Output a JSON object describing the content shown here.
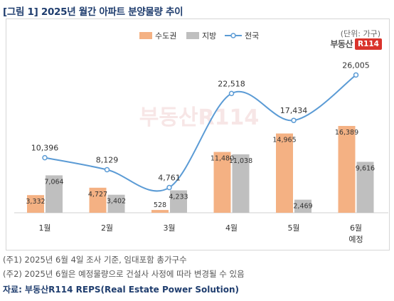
{
  "title": "[그림 1] 2025년 월간 아파트 분양물량 추이",
  "unit": "(단위: 가구)",
  "logo": {
    "text": "부동산",
    "badge": "R114"
  },
  "watermark": "부동산R114",
  "notes": [
    "(주1) 2025년 6월 4일 조사 기준, 임대포함 총가구수",
    "(주2) 2025년 6월은 예정물량으로 건설사 사정에 따라 변경될 수 있음"
  ],
  "source": "자료: 부동산R114 REPS(Real Estate Power Solution)",
  "colors": {
    "metro": "#f4b183",
    "local": "#bfbfbf",
    "national": "#5b9bd5"
  },
  "chart_data": {
    "type": "bar",
    "categories": [
      "1월",
      "2월",
      "3월",
      "4월",
      "5월",
      "6월\n예정"
    ],
    "series": [
      {
        "name": "수도권",
        "type": "bar",
        "values": [
          3332,
          4727,
          528,
          11480,
          14965,
          16389
        ]
      },
      {
        "name": "지방",
        "type": "bar",
        "values": [
          7064,
          3402,
          4233,
          11038,
          2469,
          9616
        ]
      },
      {
        "name": "전국",
        "type": "line",
        "values": [
          10396,
          8129,
          4761,
          22518,
          17434,
          26005
        ]
      }
    ],
    "legend_position": "top-center",
    "grid": false
  }
}
